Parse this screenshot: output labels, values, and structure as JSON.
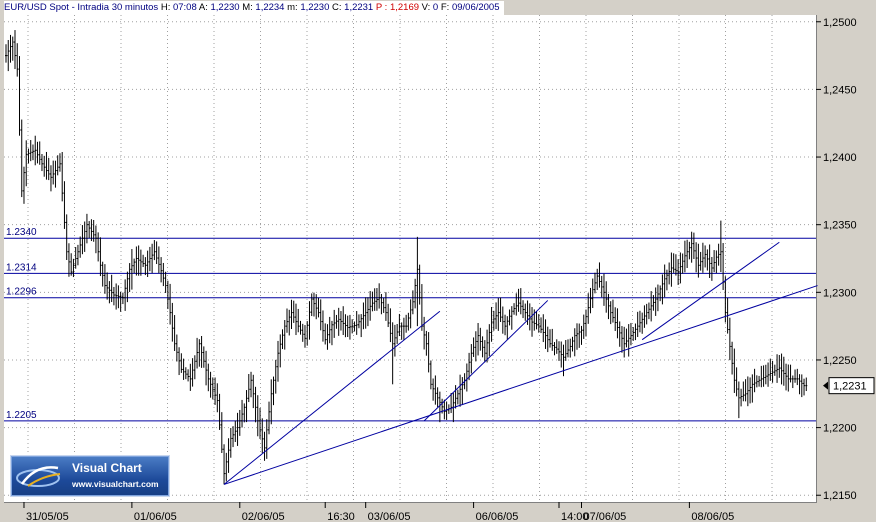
{
  "header": {
    "symbol": "EUR/USD Spot - Intradia 30 minutos",
    "h_label": "H:",
    "h_value": "07:08",
    "a_label": "A:",
    "a_value": "1,2230",
    "m_label": "M:",
    "m_value": "1,2234",
    "mn_label": "m:",
    "mn_value": "1,2230",
    "c_label": "C:",
    "c_value": "1,2231",
    "p_label": "P :",
    "p_value": "1,2169",
    "v_label": "V:",
    "v_value": "0",
    "f_label": "F:",
    "f_value": "09/06/2005"
  },
  "logo": {
    "name": "Visual Chart",
    "url": "www.visualchart.com"
  },
  "current_price_label": "1,2231",
  "colors": {
    "bars": "#000000",
    "lines": "#0000a0",
    "grid": "#a0a0a0",
    "background": "#ffffff",
    "frame": "#d4d0c8"
  },
  "chart_data": {
    "type": "ohlc",
    "title": "EUR/USD Spot - Intradia 30 minutos",
    "ylim": [
      1.2145,
      1.2505
    ],
    "y_ticks": [
      "1,2150",
      "1,2200",
      "1,2250",
      "1,2300",
      "1,2350",
      "1,2400",
      "1,2450",
      "1,2500"
    ],
    "y_tick_values": [
      1.215,
      1.22,
      1.225,
      1.23,
      1.235,
      1.24,
      1.245,
      1.25
    ],
    "x_ticks": [
      "31/05/05",
      "01/06/05",
      "02/06/05",
      "16:30",
      "03/06/05",
      "06/06/05",
      "14:00",
      "07/06/05",
      "08/06/05"
    ],
    "x_tick_bar_index": [
      8,
      56,
      104,
      142,
      160,
      208,
      246,
      256,
      304
    ],
    "grid": true,
    "horizontal_levels": [
      {
        "label": "1.2340",
        "value": 1.234
      },
      {
        "label": "1.2314",
        "value": 1.2314
      },
      {
        "label": "1.2296",
        "value": 1.2296
      },
      {
        "label": "1.2205",
        "value": 1.2205
      }
    ],
    "trendlines": [
      {
        "from": [
          97,
          1.2158
        ],
        "to": [
          193,
          1.2286
        ]
      },
      {
        "from": [
          97,
          1.2158
        ],
        "to": [
          361,
          1.2305
        ]
      },
      {
        "from": [
          186,
          1.2205
        ],
        "to": [
          241,
          1.2294
        ]
      },
      {
        "from": [
          283,
          1.2265
        ],
        "to": [
          344,
          1.2337
        ]
      }
    ],
    "keypoints": [
      [
        0,
        1.2475
      ],
      [
        3,
        1.2485
      ],
      [
        5,
        1.2465
      ],
      [
        7,
        1.2375
      ],
      [
        9,
        1.2402
      ],
      [
        13,
        1.2405
      ],
      [
        16,
        1.2395
      ],
      [
        20,
        1.2385
      ],
      [
        24,
        1.2395
      ],
      [
        27,
        1.233
      ],
      [
        29,
        1.2315
      ],
      [
        32,
        1.233
      ],
      [
        36,
        1.235
      ],
      [
        40,
        1.234
      ],
      [
        42,
        1.232
      ],
      [
        44,
        1.2305
      ],
      [
        48,
        1.2298
      ],
      [
        52,
        1.2296
      ],
      [
        55,
        1.2317
      ],
      [
        58,
        1.2325
      ],
      [
        62,
        1.232
      ],
      [
        66,
        1.233
      ],
      [
        69,
        1.2316
      ],
      [
        71,
        1.2305
      ],
      [
        73,
        1.2285
      ],
      [
        75,
        1.2262
      ],
      [
        78,
        1.2243
      ],
      [
        82,
        1.2236
      ],
      [
        86,
        1.2262
      ],
      [
        90,
        1.2236
      ],
      [
        94,
        1.222
      ],
      [
        97,
        1.2166
      ],
      [
        100,
        1.2192
      ],
      [
        103,
        1.22
      ],
      [
        106,
        1.2215
      ],
      [
        109,
        1.2235
      ],
      [
        112,
        1.2205
      ],
      [
        115,
        1.2185
      ],
      [
        118,
        1.2225
      ],
      [
        121,
        1.2255
      ],
      [
        124,
        1.2275
      ],
      [
        127,
        1.2285
      ],
      [
        130,
        1.2275
      ],
      [
        133,
        1.2266
      ],
      [
        136,
        1.2295
      ],
      [
        139,
        1.2285
      ],
      [
        142,
        1.2265
      ],
      [
        145,
        1.2276
      ],
      [
        148,
        1.228
      ],
      [
        152,
        1.2274
      ],
      [
        156,
        1.2276
      ],
      [
        160,
        1.2285
      ],
      [
        163,
        1.2292
      ],
      [
        166,
        1.2296
      ],
      [
        169,
        1.2285
      ],
      [
        172,
        1.2262
      ],
      [
        175,
        1.2275
      ],
      [
        178,
        1.2275
      ],
      [
        181,
        1.2293
      ],
      [
        183,
        1.2317
      ],
      [
        185,
        1.2275
      ],
      [
        187,
        1.2262
      ],
      [
        189,
        1.2232
      ],
      [
        192,
        1.2222
      ],
      [
        195,
        1.2212
      ],
      [
        198,
        1.2215
      ],
      [
        201,
        1.2225
      ],
      [
        204,
        1.2235
      ],
      [
        207,
        1.2255
      ],
      [
        210,
        1.2268
      ],
      [
        213,
        1.2255
      ],
      [
        216,
        1.2278
      ],
      [
        219,
        1.2285
      ],
      [
        222,
        1.2275
      ],
      [
        225,
        1.2286
      ],
      [
        228,
        1.2292
      ],
      [
        231,
        1.2285
      ],
      [
        234,
        1.2278
      ],
      [
        237,
        1.2275
      ],
      [
        240,
        1.2268
      ],
      [
        242,
        1.2262
      ],
      [
        245,
        1.2258
      ],
      [
        248,
        1.2252
      ],
      [
        251,
        1.226
      ],
      [
        253,
        1.2268
      ],
      [
        256,
        1.2272
      ],
      [
        258,
        1.2282
      ],
      [
        261,
        1.2302
      ],
      [
        263,
        1.2312
      ],
      [
        266,
        1.23
      ],
      [
        269,
        1.2285
      ],
      [
        272,
        1.2274
      ],
      [
        275,
        1.2262
      ],
      [
        278,
        1.2268
      ],
      [
        281,
        1.2275
      ],
      [
        285,
        1.2285
      ],
      [
        289,
        1.2295
      ],
      [
        293,
        1.231
      ],
      [
        296,
        1.2318
      ],
      [
        299,
        1.2315
      ],
      [
        302,
        1.2327
      ],
      [
        305,
        1.2336
      ],
      [
        308,
        1.232
      ],
      [
        311,
        1.2328
      ],
      [
        314,
        1.2318
      ],
      [
        316,
        1.2326
      ],
      [
        318,
        1.233
      ],
      [
        320,
        1.2285
      ],
      [
        322,
        1.226
      ],
      [
        324,
        1.2235
      ],
      [
        326,
        1.2222
      ],
      [
        329,
        1.2225
      ],
      [
        332,
        1.2232
      ],
      [
        336,
        1.2236
      ],
      [
        340,
        1.224
      ],
      [
        344,
        1.2244
      ],
      [
        348,
        1.2236
      ],
      [
        352,
        1.2236
      ],
      [
        355,
        1.2231
      ]
    ],
    "spikes": [
      {
        "bar": 56,
        "high": 1.2332,
        "low": 1.2302
      },
      {
        "bar": 97,
        "high": 1.2185,
        "low": 1.2158
      },
      {
        "bar": 172,
        "high": 1.2275,
        "low": 1.2232
      },
      {
        "bar": 183,
        "high": 1.2341,
        "low": 1.2275
      },
      {
        "bar": 193,
        "high": 1.222,
        "low": 1.2204
      },
      {
        "bar": 248,
        "high": 1.226,
        "low": 1.2238
      },
      {
        "bar": 318,
        "high": 1.2353,
        "low": 1.2315
      },
      {
        "bar": 326,
        "high": 1.2232,
        "low": 1.2207
      }
    ]
  }
}
